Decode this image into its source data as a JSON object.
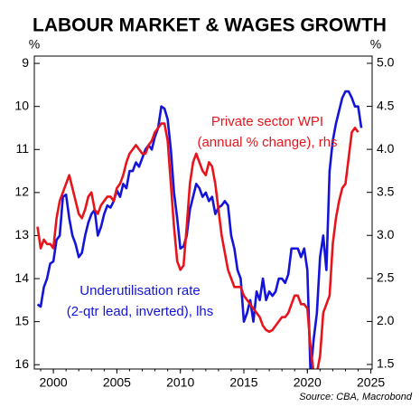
{
  "chart_data": {
    "type": "line",
    "title": "LABOUR MARKET & WAGES GROWTH",
    "ylabel": "%",
    "y2label": "%",
    "source": "Source: CBA, Macrobond",
    "xlim": [
      1998.5,
      2025.1
    ],
    "xticks": [
      2000,
      2005,
      2010,
      2015,
      2020,
      2025
    ],
    "ylim": [
      16.1,
      8.83
    ],
    "y_inverted": true,
    "yticks": [
      9,
      10,
      11,
      12,
      13,
      14,
      15,
      16
    ],
    "y2lim": [
      1.447,
      5.084
    ],
    "y2ticks": [
      1.5,
      {
        "value": 2,
        "label": "2.0"
      },
      2.5,
      {
        "value": 3,
        "label": "3.0"
      },
      3.5,
      {
        "value": 4,
        "label": "4.0"
      },
      4.5,
      {
        "value": 5,
        "label": "5.0"
      }
    ],
    "grid": false,
    "annotations": [
      {
        "text": [
          "Private sector WPI",
          "(annual % change), rhs"
        ],
        "color": "#e8141c"
      },
      {
        "text": [
          "Underutilisation rate",
          "(2-qtr lead, inverted), lhs"
        ],
        "color": "#1414d8"
      }
    ],
    "series": [
      {
        "name": "Underutilisation rate",
        "color": "#1414d8",
        "axis": "y",
        "x": [
          1998.75,
          1999,
          1999.25,
          1999.5,
          1999.75,
          2000,
          2000.25,
          2000.5,
          2000.75,
          2001,
          2001.25,
          2001.5,
          2001.75,
          2002,
          2002.25,
          2002.5,
          2002.75,
          2003,
          2003.25,
          2003.5,
          2003.75,
          2004,
          2004.25,
          2004.5,
          2004.75,
          2005,
          2005.25,
          2005.5,
          2005.75,
          2006,
          2006.25,
          2006.5,
          2006.75,
          2007,
          2007.25,
          2007.5,
          2007.75,
          2008,
          2008.25,
          2008.5,
          2008.75,
          2009,
          2009.25,
          2009.5,
          2009.75,
          2010,
          2010.25,
          2010.5,
          2010.75,
          2011,
          2011.25,
          2011.5,
          2011.75,
          2012,
          2012.25,
          2012.5,
          2012.75,
          2013,
          2013.25,
          2013.5,
          2013.75,
          2014,
          2014.25,
          2014.5,
          2014.75,
          2015,
          2015.25,
          2015.5,
          2015.75,
          2016,
          2016.25,
          2016.5,
          2016.75,
          2017,
          2017.25,
          2017.5,
          2017.75,
          2018,
          2018.25,
          2018.5,
          2018.75,
          2019,
          2019.25,
          2019.5,
          2019.75,
          2020,
          2020.25,
          2020.5,
          2020.75,
          2021,
          2021.25,
          2021.5,
          2021.75,
          2022,
          2022.25,
          2022.5,
          2022.75,
          2023,
          2023.25,
          2023.5,
          2023.75,
          2024,
          2024.25
        ],
        "values": [
          14.6,
          14.65,
          14.2,
          14.0,
          13.65,
          13.6,
          13.1,
          13.0,
          12.1,
          12.05,
          12.6,
          13.0,
          13.2,
          13.5,
          13.4,
          13.0,
          12.7,
          12.5,
          12.4,
          13.0,
          12.8,
          12.5,
          12.3,
          12.35,
          12.2,
          11.95,
          12.1,
          11.8,
          11.9,
          11.5,
          11.5,
          11.3,
          11.4,
          11.2,
          11.0,
          10.9,
          11.0,
          10.7,
          10.5,
          10.0,
          10.05,
          10.3,
          11.0,
          12.0,
          12.6,
          13.3,
          13.25,
          13.0,
          12.4,
          12.1,
          11.8,
          11.9,
          12.1,
          12.0,
          12.2,
          12.1,
          12.5,
          12.35,
          12.3,
          12.2,
          12.3,
          13.0,
          13.3,
          13.8,
          14.0,
          15.0,
          14.8,
          14.5,
          15.0,
          14.3,
          14.5,
          14.0,
          14.5,
          14.3,
          14.4,
          14.3,
          14.0,
          14.0,
          14.1,
          13.9,
          13.3,
          13.3,
          13.3,
          13.5,
          13.3,
          13.8,
          16.2,
          15.4,
          14.8,
          13.5,
          13.0,
          13.8,
          11.5,
          10.8,
          10.4,
          10.1,
          9.8,
          9.65,
          9.65,
          9.8,
          10.0,
          10.0,
          10.5
        ]
      },
      {
        "name": "Private sector WPI",
        "color": "#e8141c",
        "axis": "y2",
        "x": [
          1998.75,
          1999,
          1999.25,
          1999.5,
          1999.75,
          2000,
          2000.25,
          2000.5,
          2000.75,
          2001,
          2001.25,
          2001.5,
          2001.75,
          2002,
          2002.25,
          2002.5,
          2002.75,
          2003,
          2003.25,
          2003.5,
          2003.75,
          2004,
          2004.25,
          2004.5,
          2004.75,
          2005,
          2005.25,
          2005.5,
          2005.75,
          2006,
          2006.25,
          2006.5,
          2006.75,
          2007,
          2007.25,
          2007.5,
          2007.75,
          2008,
          2008.25,
          2008.5,
          2008.75,
          2009,
          2009.25,
          2009.5,
          2009.75,
          2010,
          2010.25,
          2010.5,
          2010.75,
          2011,
          2011.25,
          2011.5,
          2011.75,
          2012,
          2012.25,
          2012.5,
          2012.75,
          2013,
          2013.25,
          2013.5,
          2013.75,
          2014,
          2014.25,
          2014.5,
          2014.75,
          2015,
          2015.25,
          2015.5,
          2015.75,
          2016,
          2016.25,
          2016.5,
          2016.75,
          2017,
          2017.25,
          2017.5,
          2017.75,
          2018,
          2018.25,
          2018.5,
          2018.75,
          2019,
          2019.25,
          2019.5,
          2019.75,
          2020,
          2020.25,
          2020.5,
          2020.75,
          2021,
          2021.25,
          2021.5,
          2021.75,
          2022,
          2022.25,
          2022.5,
          2022.75,
          2023,
          2023.25,
          2023.5,
          2023.75,
          2024
        ],
        "values": [
          3.1,
          2.85,
          2.95,
          2.9,
          2.9,
          2.85,
          3.2,
          3.4,
          3.5,
          3.6,
          3.7,
          3.55,
          3.4,
          3.25,
          3.2,
          3.3,
          3.45,
          3.5,
          3.3,
          3.25,
          3.35,
          3.4,
          3.45,
          3.45,
          3.4,
          3.55,
          3.6,
          3.7,
          3.85,
          3.95,
          4.0,
          4.05,
          4.0,
          3.95,
          3.95,
          4.05,
          4.1,
          4.2,
          4.25,
          4.3,
          4.3,
          4.1,
          3.6,
          3.1,
          2.7,
          2.6,
          2.65,
          3.1,
          3.6,
          3.85,
          3.95,
          3.85,
          3.75,
          3.7,
          3.85,
          3.8,
          3.6,
          3.3,
          3.0,
          2.8,
          2.6,
          2.5,
          2.4,
          2.4,
          2.4,
          2.3,
          2.25,
          2.2,
          2.15,
          2.1,
          2.05,
          1.95,
          1.9,
          1.88,
          1.9,
          1.95,
          2.0,
          2.05,
          2.05,
          2.1,
          2.2,
          2.3,
          2.3,
          2.2,
          2.2,
          2.15,
          1.7,
          1.4,
          1.4,
          1.6,
          2.1,
          2.2,
          2.3,
          2.9,
          3.2,
          3.4,
          3.55,
          3.6,
          3.9,
          4.2,
          4.25,
          4.2
        ]
      }
    ]
  }
}
